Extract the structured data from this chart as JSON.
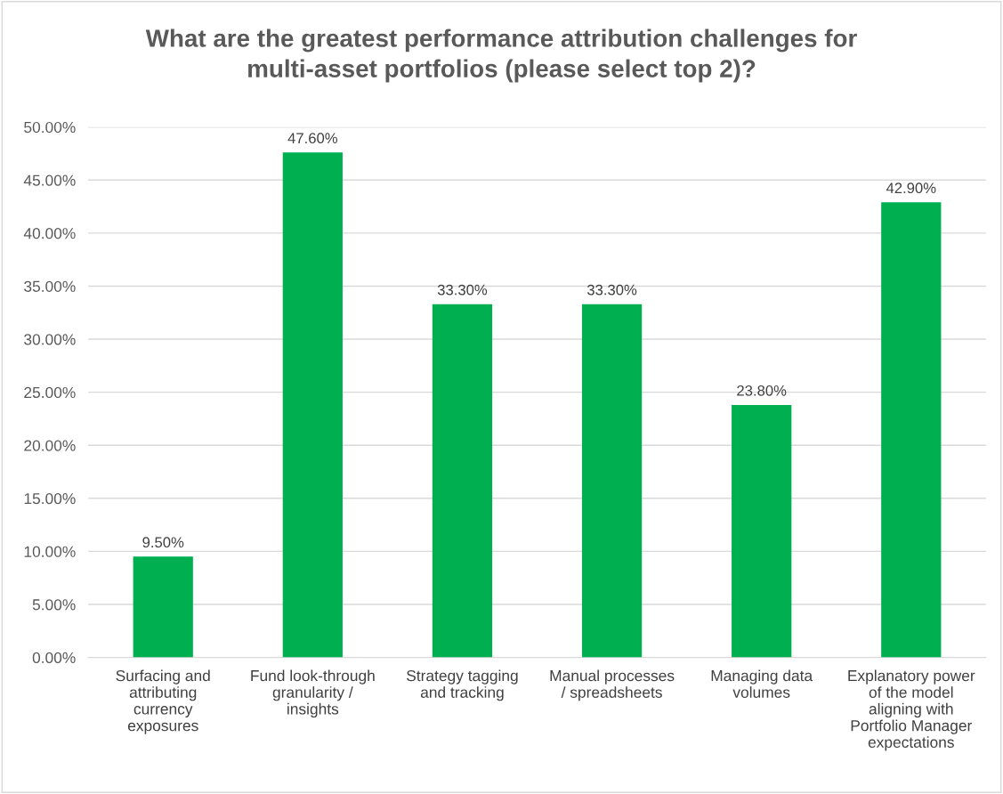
{
  "chart_data": {
    "type": "bar",
    "title": "What are the greatest performance attribution challenges for\nmulti-asset portfolios (please select top 2)?",
    "categories": [
      "Surfacing and\nattributing\ncurrency\nexposures",
      "Fund look-through\ngranularity /\ninsights",
      "Strategy tagging\nand tracking",
      "Manual processes\n/ spreadsheets",
      "Managing data\nvolumes",
      "Explanatory power\nof the model\naligning with\nPortfolio Manager\nexpectations"
    ],
    "values": [
      9.5,
      47.6,
      33.3,
      33.3,
      23.8,
      42.9
    ],
    "value_labels": [
      "9.50%",
      "47.60%",
      "33.30%",
      "33.30%",
      "23.80%",
      "42.90%"
    ],
    "color": "#00b050",
    "ylim": [
      0,
      50
    ],
    "yticks": [
      {
        "value": 0,
        "label": "0.00%"
      },
      {
        "value": 5,
        "label": "5.00%"
      },
      {
        "value": 10,
        "label": "10.00%"
      },
      {
        "value": 15,
        "label": "15.00%"
      },
      {
        "value": 20,
        "label": "20.00%"
      },
      {
        "value": 25,
        "label": "25.00%"
      },
      {
        "value": 30,
        "label": "30.00%"
      },
      {
        "value": 35,
        "label": "35.00%"
      },
      {
        "value": 40,
        "label": "40.00%"
      },
      {
        "value": 45,
        "label": "45.00%"
      },
      {
        "value": 50,
        "label": "50.00%"
      }
    ],
    "grid": "y"
  }
}
